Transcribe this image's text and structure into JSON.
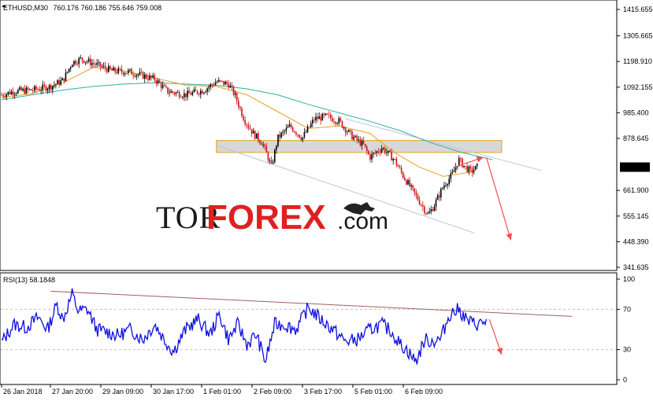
{
  "header": {
    "symbol_label": "ETHUSD,M30",
    "ohlc": "760.176 760.186 755.646 759.008"
  },
  "rsi_label": "RSI(13) 58.1848",
  "watermark": {
    "part1": "TOR",
    "part2": "FOREX",
    "part3": ".com"
  },
  "colors": {
    "bull_candle": "#000000",
    "bear_candle": "#d01010",
    "ma_fast": "#e8a020",
    "ma_slow": "#30b0a0",
    "channel": "#b8c8d8",
    "resistance_zone": "#d8d8d8",
    "arrow": "#f05050",
    "rsi_line": "#1010e0",
    "rsi_trend": "#a06060",
    "current_price_bg": "#000000"
  },
  "chart_data": [
    {
      "type": "candlestick",
      "title": "ETHUSD,M30",
      "ylim": [
        341.635,
        1415.655
      ],
      "price_labels": [
        "1415.655",
        "1305.665",
        "1198.910",
        "1092.155",
        "985.400",
        "878.645",
        "759.008",
        "661.900",
        "555.145",
        "448.390",
        "341.635"
      ],
      "current_price": 759.008,
      "current_price_label": "759.008",
      "x_labels": [
        "26 Jan 2018",
        "27 Jan 20:00",
        "29 Jan 09:00",
        "30 Jan 17:00",
        "1 Feb 01:00",
        "2 Feb 09:00",
        "3 Feb 17:00",
        "5 Feb 01:00",
        "6 Feb 09:00"
      ],
      "price_path": [
        [
          0,
          1060
        ],
        [
          0.02,
          1075
        ],
        [
          0.05,
          1080
        ],
        [
          0.08,
          1095
        ],
        [
          0.1,
          1120
        ],
        [
          0.115,
          1195
        ],
        [
          0.13,
          1210
        ],
        [
          0.15,
          1190
        ],
        [
          0.18,
          1160
        ],
        [
          0.21,
          1155
        ],
        [
          0.23,
          1140
        ],
        [
          0.25,
          1125
        ],
        [
          0.27,
          1075
        ],
        [
          0.3,
          1060
        ],
        [
          0.33,
          1080
        ],
        [
          0.35,
          1115
        ],
        [
          0.37,
          1105
        ],
        [
          0.38,
          1060
        ],
        [
          0.395,
          960
        ],
        [
          0.41,
          900
        ],
        [
          0.425,
          860
        ],
        [
          0.44,
          760
        ],
        [
          0.45,
          880
        ],
        [
          0.47,
          930
        ],
        [
          0.49,
          880
        ],
        [
          0.51,
          960
        ],
        [
          0.53,
          970
        ],
        [
          0.55,
          950
        ],
        [
          0.57,
          890
        ],
        [
          0.59,
          850
        ],
        [
          0.6,
          800
        ],
        [
          0.62,
          840
        ],
        [
          0.64,
          790
        ],
        [
          0.655,
          720
        ],
        [
          0.67,
          660
        ],
        [
          0.685,
          600
        ],
        [
          0.695,
          560
        ],
        [
          0.705,
          600
        ],
        [
          0.72,
          680
        ],
        [
          0.735,
          730
        ],
        [
          0.745,
          790
        ],
        [
          0.755,
          760
        ],
        [
          0.765,
          740
        ],
        [
          0.775,
          759
        ]
      ],
      "ma_fast_path": [
        [
          0,
          1050
        ],
        [
          0.05,
          1065
        ],
        [
          0.1,
          1110
        ],
        [
          0.15,
          1175
        ],
        [
          0.2,
          1160
        ],
        [
          0.25,
          1130
        ],
        [
          0.3,
          1100
        ],
        [
          0.35,
          1095
        ],
        [
          0.4,
          1060
        ],
        [
          0.45,
          990
        ],
        [
          0.5,
          920
        ],
        [
          0.55,
          930
        ],
        [
          0.6,
          900
        ],
        [
          0.64,
          820
        ],
        [
          0.68,
          760
        ],
        [
          0.72,
          720
        ],
        [
          0.77,
          740
        ]
      ],
      "ma_slow_path": [
        [
          0,
          1040
        ],
        [
          0.05,
          1060
        ],
        [
          0.1,
          1080
        ],
        [
          0.15,
          1095
        ],
        [
          0.2,
          1105
        ],
        [
          0.25,
          1110
        ],
        [
          0.3,
          1105
        ],
        [
          0.35,
          1100
        ],
        [
          0.4,
          1085
        ],
        [
          0.45,
          1060
        ],
        [
          0.5,
          1020
        ],
        [
          0.55,
          985
        ],
        [
          0.6,
          950
        ],
        [
          0.65,
          910
        ],
        [
          0.7,
          860
        ],
        [
          0.75,
          820
        ],
        [
          0.8,
          790
        ]
      ],
      "resistance_zone": {
        "from": 820,
        "to": 870
      },
      "channel_upper": [
        [
          0.56,
          960
        ],
        [
          0.88,
          745
        ]
      ],
      "channel_lower": [
        [
          0.35,
          850
        ],
        [
          0.77,
          485
        ]
      ],
      "forecast_arrows": [
        {
          "from": [
            0.74,
            760
          ],
          "to": [
            0.785,
            800
          ]
        },
        {
          "from": [
            0.79,
            800
          ],
          "to": [
            0.83,
            455
          ]
        }
      ]
    },
    {
      "type": "line",
      "title": "RSI(13) 58.1848",
      "ylim": [
        0,
        100
      ],
      "levels": [
        30,
        70
      ],
      "tick_labels": [
        "100",
        "70",
        "30",
        "0"
      ],
      "trend_line": [
        [
          0.08,
          88
        ],
        [
          0.93,
          63
        ]
      ],
      "forecast_arrow": {
        "from": [
          0.795,
          60
        ],
        "to": [
          0.815,
          25
        ]
      },
      "values_path": [
        [
          0,
          37
        ],
        [
          0.02,
          55
        ],
        [
          0.04,
          52
        ],
        [
          0.06,
          62
        ],
        [
          0.075,
          50
        ],
        [
          0.09,
          75
        ],
        [
          0.1,
          60
        ],
        [
          0.115,
          85
        ],
        [
          0.125,
          68
        ],
        [
          0.14,
          70
        ],
        [
          0.155,
          50
        ],
        [
          0.17,
          48
        ],
        [
          0.19,
          44
        ],
        [
          0.21,
          50
        ],
        [
          0.23,
          40
        ],
        [
          0.25,
          55
        ],
        [
          0.265,
          40
        ],
        [
          0.28,
          28
        ],
        [
          0.3,
          50
        ],
        [
          0.32,
          60
        ],
        [
          0.34,
          45
        ],
        [
          0.355,
          65
        ],
        [
          0.37,
          40
        ],
        [
          0.385,
          55
        ],
        [
          0.4,
          35
        ],
        [
          0.415,
          45
        ],
        [
          0.43,
          18
        ],
        [
          0.445,
          55
        ],
        [
          0.46,
          55
        ],
        [
          0.48,
          50
        ],
        [
          0.5,
          72
        ],
        [
          0.52,
          60
        ],
        [
          0.54,
          50
        ],
        [
          0.56,
          38
        ],
        [
          0.58,
          40
        ],
        [
          0.6,
          50
        ],
        [
          0.62,
          55
        ],
        [
          0.635,
          48
        ],
        [
          0.65,
          35
        ],
        [
          0.66,
          30
        ],
        [
          0.675,
          18
        ],
        [
          0.69,
          40
        ],
        [
          0.7,
          38
        ],
        [
          0.715,
          40
        ],
        [
          0.73,
          65
        ],
        [
          0.745,
          70
        ],
        [
          0.76,
          58
        ],
        [
          0.775,
          55
        ],
        [
          0.79,
          58
        ]
      ]
    }
  ]
}
